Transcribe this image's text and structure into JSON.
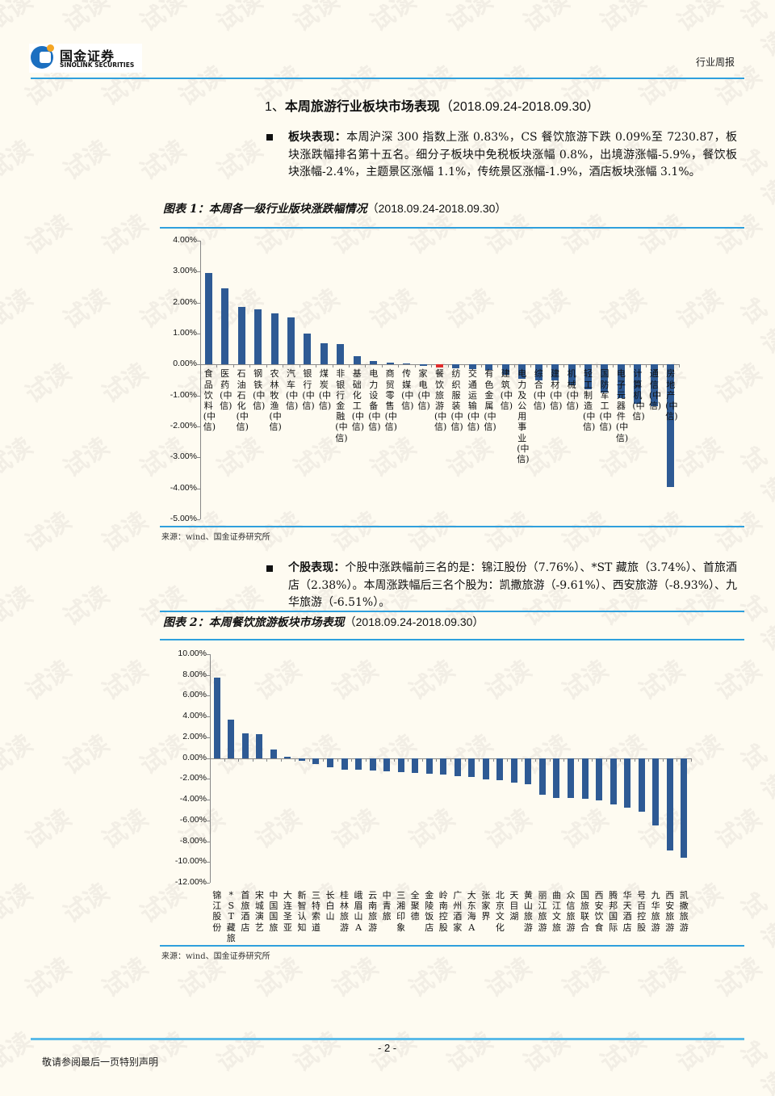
{
  "header": {
    "logo_cn": "国金证券",
    "logo_en": "SINOLINK SECURITIES",
    "report_type": "行业周报"
  },
  "section1": {
    "title_num": "1、",
    "title": "本周旅游行业板块市场表现",
    "title_range": "（2018.09.24-2018.09.30）",
    "bullet_label": "板块表现：",
    "bullet_text": "本周沪深 300 指数上涨 0.83%，CS 餐饮旅游下跌 0.09%至 7230.87，板块涨跌幅排名第十五名。细分子板块中免税板块涨幅 0.8%，出境游涨幅-5.9%，餐饮板块涨幅-2.4%，主题景区涨幅 1.1%，传统景区涨幅-1.9%，酒店板块涨幅 3.1%。"
  },
  "figure1": {
    "title": "图表 1：本周各一级行业版块涨跌幅情况",
    "range": "（2018.09.24-2018.09.30）",
    "source": "来源：wind、国金证券研究所"
  },
  "section2": {
    "bullet_label": "个股表现：",
    "bullet_text": "个股中涨跌幅前三名的是：锦江股份（7.76%）、*ST 藏旅（3.74%）、首旅酒店（2.38%）。本周涨跌幅后三名个股为：凯撒旅游（-9.61%）、西安旅游（-8.93%）、九华旅游（-6.51%）。"
  },
  "figure2": {
    "title": "图表 2：本周餐饮旅游板块市场表现",
    "range": "（2018.09.24-2018.09.30）",
    "source": "来源：wind、国金证券研究所"
  },
  "footer": {
    "page": "- 2 -",
    "note": "敬请参阅最后一页特别声明"
  },
  "colors": {
    "bar": "#2e5a94",
    "highlight_bar": "#e02b2b",
    "rule": "#2fa0dd",
    "background": "#fefbf1"
  },
  "chart_data": [
    {
      "type": "bar",
      "title": "本周各一级行业版块涨跌幅情况（2018.09.24-2018.09.30）",
      "xlabel": "",
      "ylabel": "",
      "ylim": [
        -5,
        4
      ],
      "yticks": [
        "4.00%",
        "3.00%",
        "2.00%",
        "1.00%",
        "0.00%",
        "-1.00%",
        "-2.00%",
        "-3.00%",
        "-4.00%",
        "-5.00%"
      ],
      "grid": false,
      "legend": "none",
      "highlight": "餐饮旅游(中信)",
      "categories": [
        "食品饮料(中信)",
        "医药(中信)",
        "石油石化(中信)",
        "钢铁(中信)",
        "农林牧渔(中信)",
        "汽车(中信)",
        "银行(中信)",
        "煤炭(中信)",
        "非银行金融(中信)",
        "基础化工(中信)",
        "电力设备(中信)",
        "商贸零售(中信)",
        "传媒(中信)",
        "家电(中信)",
        "餐饮旅游(中信)",
        "纺织服装(中信)",
        "交通运输(中信)",
        "有色金属(中信)",
        "建筑(中信)",
        "电力及公用事业(中信)",
        "综合(中信)",
        "建材(中信)",
        "机械(中信)",
        "轻工制造(中信)",
        "国防军工(中信)",
        "电子元器件(中信)",
        "计算机(中信)",
        "通信(中信)",
        "房地产(中信)"
      ],
      "values": [
        2.96,
        2.47,
        1.87,
        1.77,
        1.66,
        1.53,
        0.99,
        0.7,
        0.67,
        0.28,
        0.12,
        0.07,
        0.04,
        -0.05,
        -0.09,
        -0.12,
        -0.15,
        -0.17,
        -0.32,
        -0.45,
        -0.52,
        -0.52,
        -0.67,
        -0.8,
        -0.9,
        -1.08,
        -1.27,
        -1.34,
        -3.96
      ]
    },
    {
      "type": "bar",
      "title": "本周餐饮旅游板块市场表现（2018.09.24-2018.09.30）",
      "xlabel": "",
      "ylabel": "",
      "ylim": [
        -12,
        10
      ],
      "yticks": [
        "10.00%",
        "8.00%",
        "6.00%",
        "4.00%",
        "2.00%",
        "0.00%",
        "-2.00%",
        "-4.00%",
        "-6.00%",
        "-8.00%",
        "-10.00%",
        "-12.00%"
      ],
      "grid": false,
      "legend": "none",
      "categories": [
        "锦江股份",
        "*ST藏旅",
        "首旅酒店",
        "宋城演艺",
        "中国国旅",
        "大连圣亚",
        "新智认知",
        "三特索道",
        "长白山",
        "桂林旅游",
        "峨眉山A",
        "云南旅游",
        "中青旅",
        "三湘印象",
        "全聚德",
        "金陵饭店",
        "岭南控股",
        "广州酒家",
        "大东海A",
        "张家界",
        "北京文化",
        "天目湖",
        "黄山旅游",
        "丽江旅游",
        "曲江文旅",
        "众信旅游",
        "国旅联合",
        "西安饮食",
        "腾邦国际",
        "华天酒店",
        "号百控股",
        "九华旅游",
        "西安旅游",
        "凯撒旅游"
      ],
      "values": [
        7.76,
        3.74,
        2.38,
        2.3,
        0.8,
        0.12,
        -0.25,
        -0.6,
        -0.9,
        -1.1,
        -1.15,
        -1.2,
        -1.25,
        -1.35,
        -1.4,
        -1.5,
        -1.6,
        -1.75,
        -1.85,
        -2.05,
        -2.1,
        -2.35,
        -2.55,
        -3.5,
        -3.8,
        -3.8,
        -3.95,
        -4.1,
        -4.45,
        -4.75,
        -5.15,
        -6.51,
        -8.93,
        -9.61
      ]
    }
  ]
}
